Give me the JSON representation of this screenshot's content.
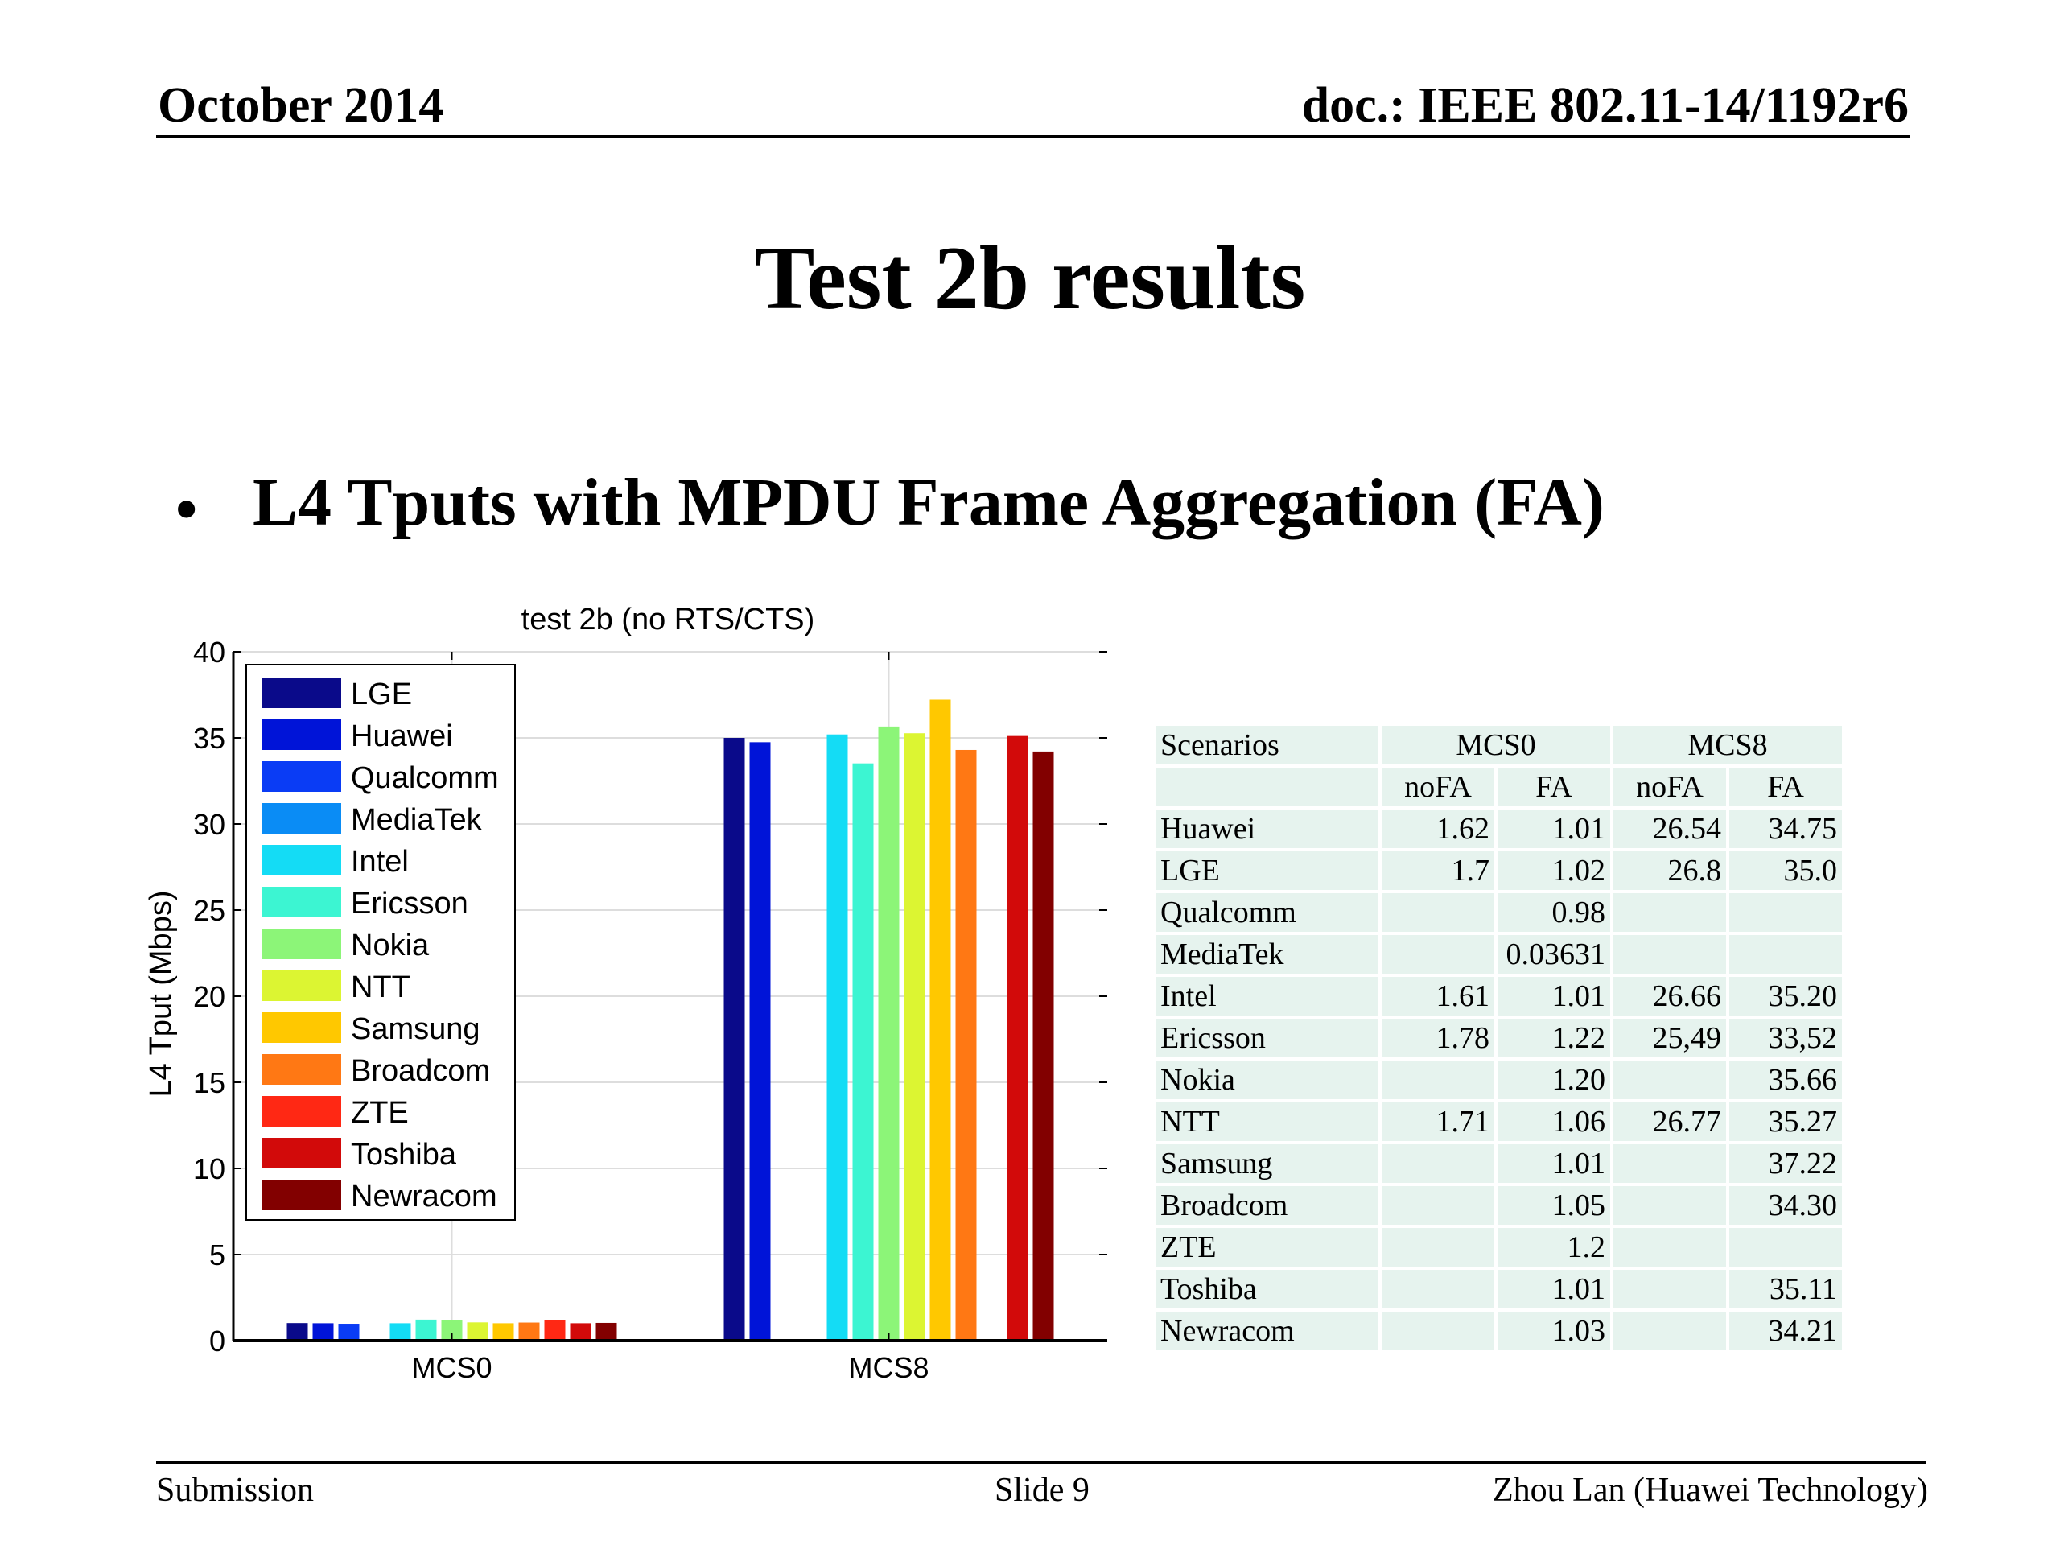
{
  "header": {
    "date": "October 2014",
    "doc": "doc.: IEEE 802.11-14/1192r6"
  },
  "slide_title": "Test 2b results",
  "bullet": {
    "symbol": "•",
    "text": "L4 Tputs with MPDU Frame Aggregation (FA)"
  },
  "chart_data": {
    "type": "bar",
    "title": "test 2b (no RTS/CTS)",
    "ylabel": "L4 Tput (Mbps)",
    "xlabel": "",
    "categories": [
      "MCS0",
      "MCS8"
    ],
    "ylim": [
      0,
      40
    ],
    "yticks": [
      0,
      5,
      10,
      15,
      20,
      25,
      30,
      35,
      40
    ],
    "grid": true,
    "legend_position": "top-left",
    "series": [
      {
        "name": "LGE",
        "color": "#0a0a8a",
        "values": [
          1.02,
          35.0
        ]
      },
      {
        "name": "Huawei",
        "color": "#0014d8",
        "values": [
          1.01,
          34.75
        ]
      },
      {
        "name": "Qualcomm",
        "color": "#0a3cf5",
        "values": [
          0.98,
          null
        ]
      },
      {
        "name": "MediaTek",
        "color": "#0a8cf5",
        "values": [
          0.03631,
          null
        ]
      },
      {
        "name": "Intel",
        "color": "#14dcf5",
        "values": [
          1.01,
          35.2
        ]
      },
      {
        "name": "Ericsson",
        "color": "#3cf5d2",
        "values": [
          1.22,
          33.52
        ]
      },
      {
        "name": "Nokia",
        "color": "#8cf578",
        "values": [
          1.2,
          35.66
        ]
      },
      {
        "name": "NTT",
        "color": "#dcf532",
        "values": [
          1.06,
          35.27
        ]
      },
      {
        "name": "Samsung",
        "color": "#ffc800",
        "values": [
          1.01,
          37.22
        ]
      },
      {
        "name": "Broadcom",
        "color": "#ff7814",
        "values": [
          1.05,
          34.3
        ]
      },
      {
        "name": "ZTE",
        "color": "#ff2814",
        "values": [
          1.2,
          null
        ]
      },
      {
        "name": "Toshiba",
        "color": "#d20a0a",
        "values": [
          1.01,
          35.11
        ]
      },
      {
        "name": "Newracom",
        "color": "#820000",
        "values": [
          1.03,
          34.21
        ]
      }
    ]
  },
  "table": {
    "header1": [
      "Scenarios",
      "MCS0",
      "MCS8"
    ],
    "header2": [
      "",
      "noFA",
      "FA",
      "noFA",
      "FA"
    ],
    "rows": [
      [
        "Huawei",
        "1.62",
        "1.01",
        "26.54",
        "34.75"
      ],
      [
        "LGE",
        "1.7",
        "1.02",
        "26.8",
        "35.0"
      ],
      [
        "Qualcomm",
        "",
        "0.98",
        "",
        ""
      ],
      [
        "MediaTek",
        "",
        "0.03631",
        "",
        ""
      ],
      [
        "Intel",
        "1.61",
        "1.01",
        "26.66",
        "35.20"
      ],
      [
        "Ericsson",
        "1.78",
        "1.22",
        "25,49",
        "33,52"
      ],
      [
        "Nokia",
        "",
        "1.20",
        "",
        "35.66"
      ],
      [
        "NTT",
        "1.71",
        "1.06",
        "26.77",
        "35.27"
      ],
      [
        "Samsung",
        "",
        "1.01",
        "",
        "37.22"
      ],
      [
        "Broadcom",
        "",
        "1.05",
        "",
        "34.30"
      ],
      [
        "ZTE",
        "",
        "1.2",
        "",
        ""
      ],
      [
        "Toshiba",
        "",
        "1.01",
        "",
        "35.11"
      ],
      [
        "Newracom",
        "",
        "1.03",
        "",
        "34.21"
      ]
    ]
  },
  "footer": {
    "left": "Submission",
    "center": "Slide 9",
    "right": "Zhou Lan (Huawei Technology)"
  }
}
